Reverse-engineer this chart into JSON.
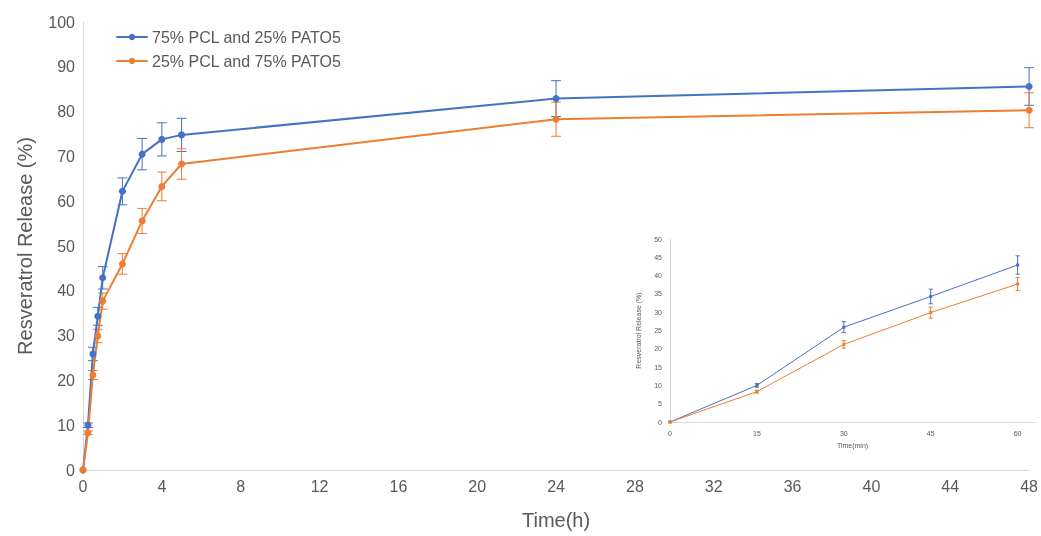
{
  "chart_data": [
    {
      "type": "line",
      "xlabel": "Time(h)",
      "ylabel": "Resveratrol Release (%)",
      "x": [
        0,
        0.25,
        0.5,
        0.75,
        1,
        2,
        3,
        4,
        5,
        24,
        48
      ],
      "xlim": [
        0,
        48
      ],
      "xticks": [
        0,
        4,
        8,
        12,
        16,
        20,
        24,
        28,
        32,
        36,
        40,
        44,
        48
      ],
      "ylim": [
        0,
        100
      ],
      "yticks": [
        0,
        10,
        20,
        30,
        40,
        50,
        60,
        70,
        80,
        90,
        100
      ],
      "grid": false,
      "legend": "top left",
      "marker": "circle",
      "line_style": "solid",
      "series": [
        {
          "name": "75% PCL and 25% PATO5",
          "color": "#4472c4",
          "values": [
            0,
            10,
            25.9,
            34.3,
            42.9,
            62.2,
            70.5,
            73.8,
            74.8,
            82.9,
            85.6
          ],
          "errors": [
            null,
            0.5,
            1.5,
            2,
            2.5,
            3,
            3.5,
            3.7,
            3.7,
            4,
            4.2
          ]
        },
        {
          "name": "25% PCL and 75% PATO5",
          "color": "#ed7d31",
          "values": [
            0,
            8.3,
            21.2,
            29.9,
            37.7,
            46,
            55.6,
            63.3,
            68.3,
            78.3,
            80.3
          ],
          "errors": [
            null,
            0.4,
            1,
            1.5,
            1.8,
            2.3,
            2.8,
            3.2,
            3.4,
            3.8,
            3.9
          ]
        }
      ]
    },
    {
      "type": "line",
      "xlabel": "Time(min)",
      "ylabel": "Resveratrol Release (%)",
      "x": [
        0,
        15,
        30,
        45,
        60
      ],
      "xlim": [
        0,
        63
      ],
      "xticks": [
        0,
        15,
        30,
        45,
        60
      ],
      "ylim": [
        0,
        50
      ],
      "yticks": [
        0,
        5,
        10,
        15,
        20,
        25,
        30,
        35,
        40,
        45,
        50
      ],
      "grid": false,
      "legend": false,
      "marker": "square",
      "line_style": "solid",
      "series": [
        {
          "color": "#4472c4",
          "values": [
            0,
            10,
            25.9,
            34.3,
            42.9
          ],
          "errors": [
            null,
            0.5,
            1.5,
            2,
            2.5
          ]
        },
        {
          "color": "#ed7d31",
          "values": [
            0,
            8.3,
            21.2,
            29.9,
            37.7
          ],
          "errors": [
            null,
            0.4,
            1,
            1.5,
            1.8
          ]
        }
      ]
    }
  ]
}
